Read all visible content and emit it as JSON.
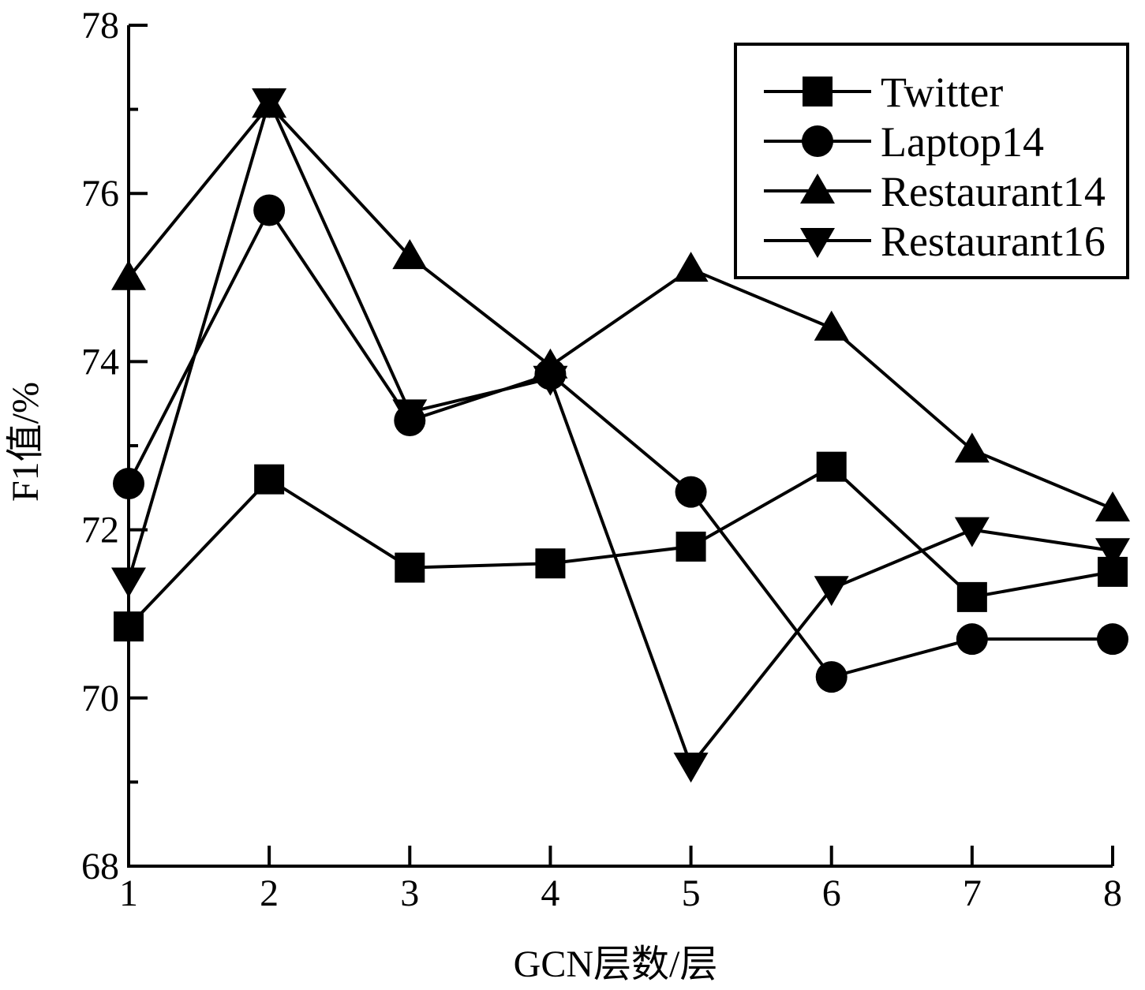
{
  "chart_data": {
    "type": "line",
    "x": [
      1,
      2,
      3,
      4,
      5,
      6,
      7,
      8
    ],
    "xlabel": "GCN层数/层",
    "ylabel": "F1值/%",
    "xlim": [
      1,
      8
    ],
    "ylim": [
      68,
      78
    ],
    "xticks": [
      "1",
      "2",
      "3",
      "4",
      "5",
      "6",
      "7",
      "8"
    ],
    "yticks": [
      "68",
      "70",
      "72",
      "74",
      "76",
      "78"
    ],
    "grid": false,
    "legend_position": "top-right",
    "series": [
      {
        "name": "Twitter",
        "marker": "square",
        "values": [
          70.85,
          72.6,
          71.55,
          71.6,
          71.8,
          72.75,
          71.2,
          71.5
        ]
      },
      {
        "name": "Laptop14",
        "marker": "circle",
        "values": [
          72.55,
          75.8,
          73.3,
          73.85,
          72.45,
          70.25,
          70.7,
          70.7
        ]
      },
      {
        "name": "Restaurant14",
        "marker": "triangle-up",
        "values": [
          75.0,
          77.05,
          75.25,
          73.95,
          75.1,
          74.4,
          72.95,
          72.25
        ]
      },
      {
        "name": "Restaurant16",
        "marker": "triangle-down",
        "values": [
          71.4,
          77.1,
          73.4,
          73.8,
          69.2,
          71.3,
          72.0,
          71.75
        ]
      }
    ]
  }
}
